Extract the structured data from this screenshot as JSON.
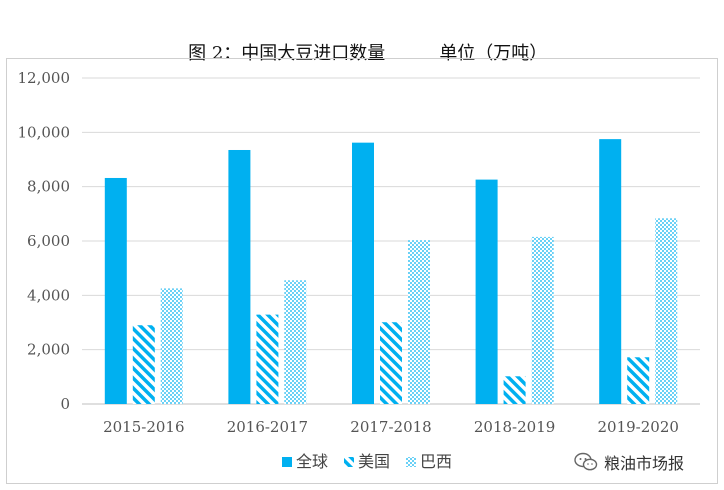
{
  "header": {
    "title": "图 2：中国大豆进口数量",
    "unit": "单位（万吨）"
  },
  "chart_data": {
    "type": "bar",
    "categories": [
      "2015-2016",
      "2016-2017",
      "2017-2018",
      "2018-2019",
      "2019-2020"
    ],
    "series": [
      {
        "name": "全球",
        "values": [
          8320,
          9350,
          9620,
          8260,
          9750
        ],
        "pattern": "solid",
        "color": "#00b0f0"
      },
      {
        "name": "美国",
        "values": [
          2900,
          3290,
          3010,
          1020,
          1720
        ],
        "pattern": "diagonal-stripes",
        "color": "#00b0f0"
      },
      {
        "name": "巴西",
        "values": [
          4250,
          4550,
          6030,
          6150,
          6830
        ],
        "pattern": "dots",
        "color": "#00b0f0"
      }
    ],
    "y_ticks": [
      "0",
      "2,000",
      "4,000",
      "6,000",
      "8,000",
      "10,000",
      "12,000"
    ],
    "ylim": [
      0,
      12000
    ],
    "grid": true,
    "legend_position": "bottom"
  },
  "watermark": {
    "icon": "wechat-icon",
    "text": "粮油市场报"
  }
}
